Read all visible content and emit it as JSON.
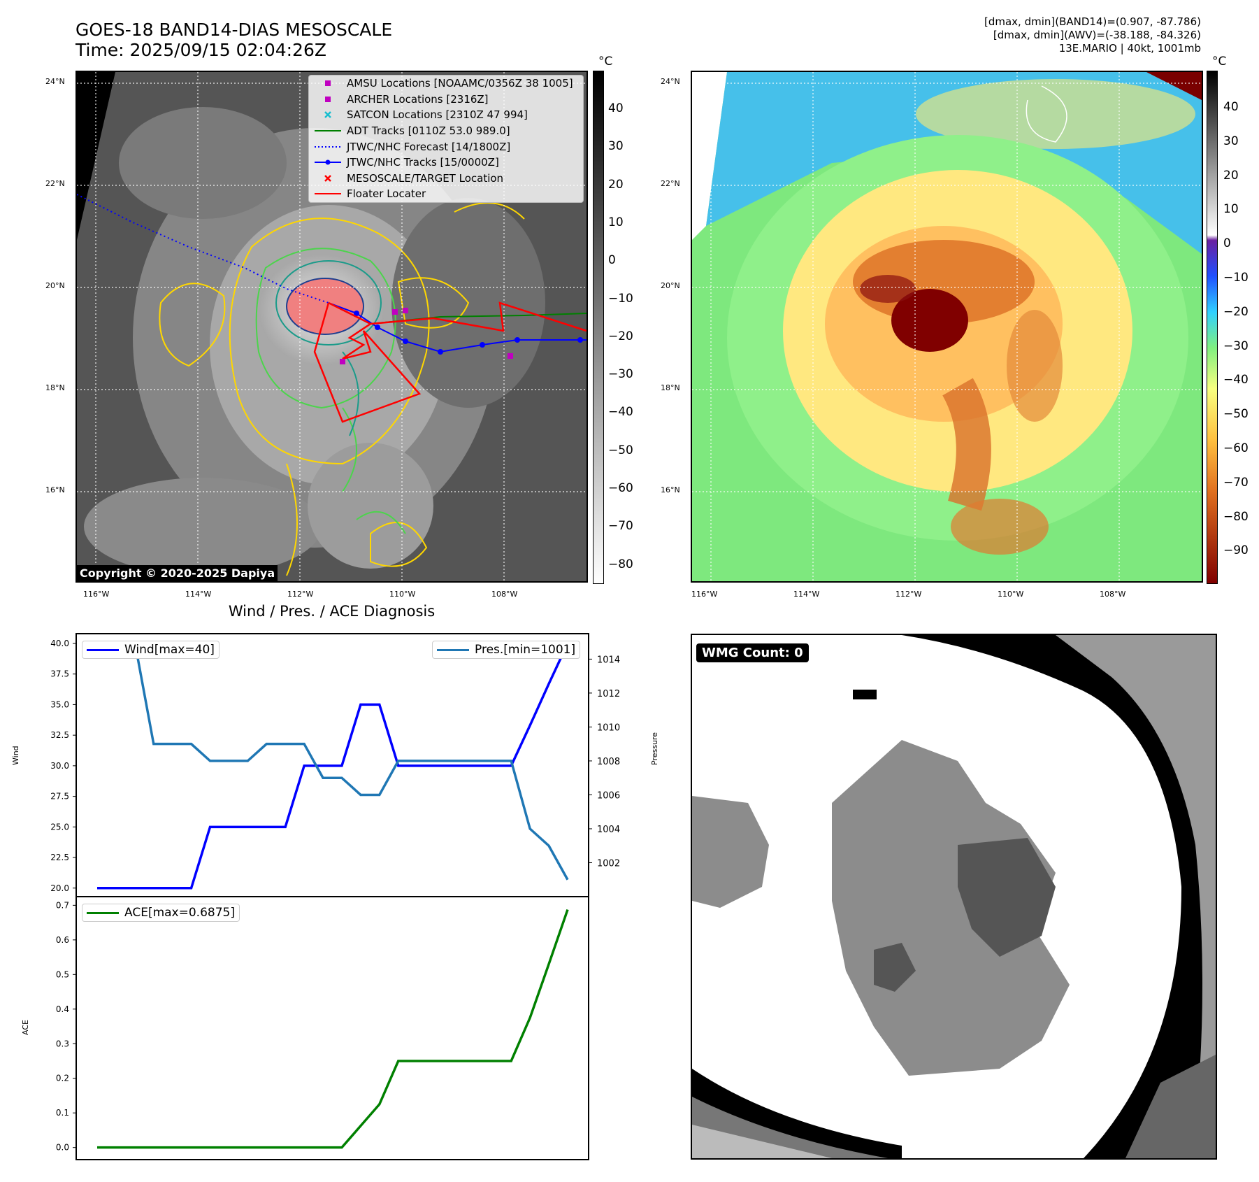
{
  "header": {
    "title_line1": "GOES-18 BAND14-DIAS MESOSCALE",
    "title_line2": "Time: 2025/09/15 02:04:26Z",
    "info_line1": "[dmax, dmin](BAND14)=(0.907, -87.786)",
    "info_line2": "[dmax, dmin](AWV)=(-38.188, -84.326)",
    "info_line3": "13E.MARIO | 40kt, 1001mb"
  },
  "ir_panel": {
    "lat_labels": [
      "24°N",
      "22°N",
      "20°N",
      "18°N",
      "16°N"
    ],
    "lon_labels": [
      "116°W",
      "114°W",
      "112°W",
      "110°W",
      "108°W"
    ],
    "colorbar_unit": "°C",
    "colorbar_ticks": [
      "40",
      "30",
      "20",
      "10",
      "0",
      "−10",
      "−20",
      "−30",
      "−40",
      "−50",
      "−60",
      "−70",
      "−80"
    ],
    "copyright": "Copyright © 2020-2025 Dapiya",
    "legend": [
      {
        "label": "AMSU Locations [NOAAMC/0356Z 38 1005]",
        "marker": "square",
        "color": "#c000c0"
      },
      {
        "label": "ARCHER Locations [2316Z]",
        "marker": "square",
        "color": "#c000c0"
      },
      {
        "label": "SATCON Locations [2310Z 47 994]",
        "marker": "x",
        "color": "#17becf"
      },
      {
        "label": "ADT Tracks [0110Z 53.0 989.0]",
        "marker": "line",
        "color": "#008000"
      },
      {
        "label": "JTWC/NHC Forecast [14/1800Z]",
        "marker": "dotted",
        "color": "#0000ff"
      },
      {
        "label": "JTWC/NHC Tracks [15/0000Z]",
        "marker": "line-dot",
        "color": "#0000ff"
      },
      {
        "label": "MESOSCALE/TARGET Location",
        "marker": "x",
        "color": "#ff0000"
      },
      {
        "label": "Floater Locater",
        "marker": "line",
        "color": "#ff0000"
      }
    ]
  },
  "color_panel": {
    "lat_labels": [
      "24°N",
      "22°N",
      "20°N",
      "18°N",
      "16°N"
    ],
    "lon_labels": [
      "116°W",
      "114°W",
      "112°W",
      "110°W",
      "108°W"
    ],
    "colorbar_unit": "°C",
    "colorbar_ticks": [
      "40",
      "30",
      "20",
      "10",
      "0",
      "−10",
      "−20",
      "−30",
      "−40",
      "−50",
      "−60",
      "−70",
      "−80",
      "−90"
    ]
  },
  "wmg_panel": {
    "label": "WMG Count: 0"
  },
  "chart_data": [
    {
      "type": "line",
      "title": "Wind / Pres. / ACE Diagnosis",
      "ylabel": "Wind",
      "y2label": "Pressure",
      "ylim": [
        19.3,
        40.8
      ],
      "y2lim": [
        1000.0,
        1015.5
      ],
      "yticks": [
        "40.0",
        "37.5",
        "35.0",
        "32.5",
        "30.0",
        "27.5",
        "25.0",
        "22.5",
        "20.0"
      ],
      "y2ticks": [
        "1014",
        "1012",
        "1010",
        "1008",
        "1006",
        "1004",
        "1002"
      ],
      "x": [
        0,
        1,
        2,
        3,
        4,
        5,
        6,
        7,
        8,
        9,
        10,
        11,
        12,
        13,
        14,
        15,
        16,
        17,
        18,
        19,
        20,
        21,
        22,
        23,
        24,
        25
      ],
      "series": [
        {
          "name": "Wind[max=40]",
          "axis": "left",
          "color": "#0000ff",
          "values": [
            20,
            20,
            20,
            20,
            20,
            20,
            25,
            25,
            25,
            25,
            25,
            30,
            30,
            30,
            35,
            35,
            30,
            30,
            30,
            30,
            30,
            30,
            30,
            33.3,
            36.7,
            40
          ]
        },
        {
          "name": "Pres.[min=1001]",
          "axis": "right",
          "color": "#1f77b4",
          "values": [
            1015,
            1015,
            1015,
            1009,
            1009,
            1009,
            1008,
            1008,
            1008,
            1009,
            1009,
            1009,
            1007,
            1007,
            1006,
            1006,
            1008,
            1008,
            1008,
            1008,
            1008,
            1008,
            1008,
            1004,
            1003,
            1001
          ]
        }
      ]
    },
    {
      "type": "line",
      "ylabel": "ACE",
      "ylim": [
        -0.035,
        0.725
      ],
      "yticks": [
        "0.7",
        "0.6",
        "0.5",
        "0.4",
        "0.3",
        "0.2",
        "0.1",
        "0.0"
      ],
      "x": [
        0,
        1,
        2,
        3,
        4,
        5,
        6,
        7,
        8,
        9,
        10,
        11,
        12,
        13,
        14,
        15,
        16,
        17,
        18,
        19,
        20,
        21,
        22,
        23,
        24,
        25
      ],
      "series": [
        {
          "name": "ACE[max=0.6875]",
          "color": "#008000",
          "values": [
            0,
            0,
            0,
            0,
            0,
            0,
            0,
            0,
            0,
            0,
            0,
            0,
            0,
            0,
            0.0625,
            0.125,
            0.25,
            0.25,
            0.25,
            0.25,
            0.25,
            0.25,
            0.25,
            0.375,
            0.53,
            0.6875
          ]
        }
      ]
    }
  ]
}
